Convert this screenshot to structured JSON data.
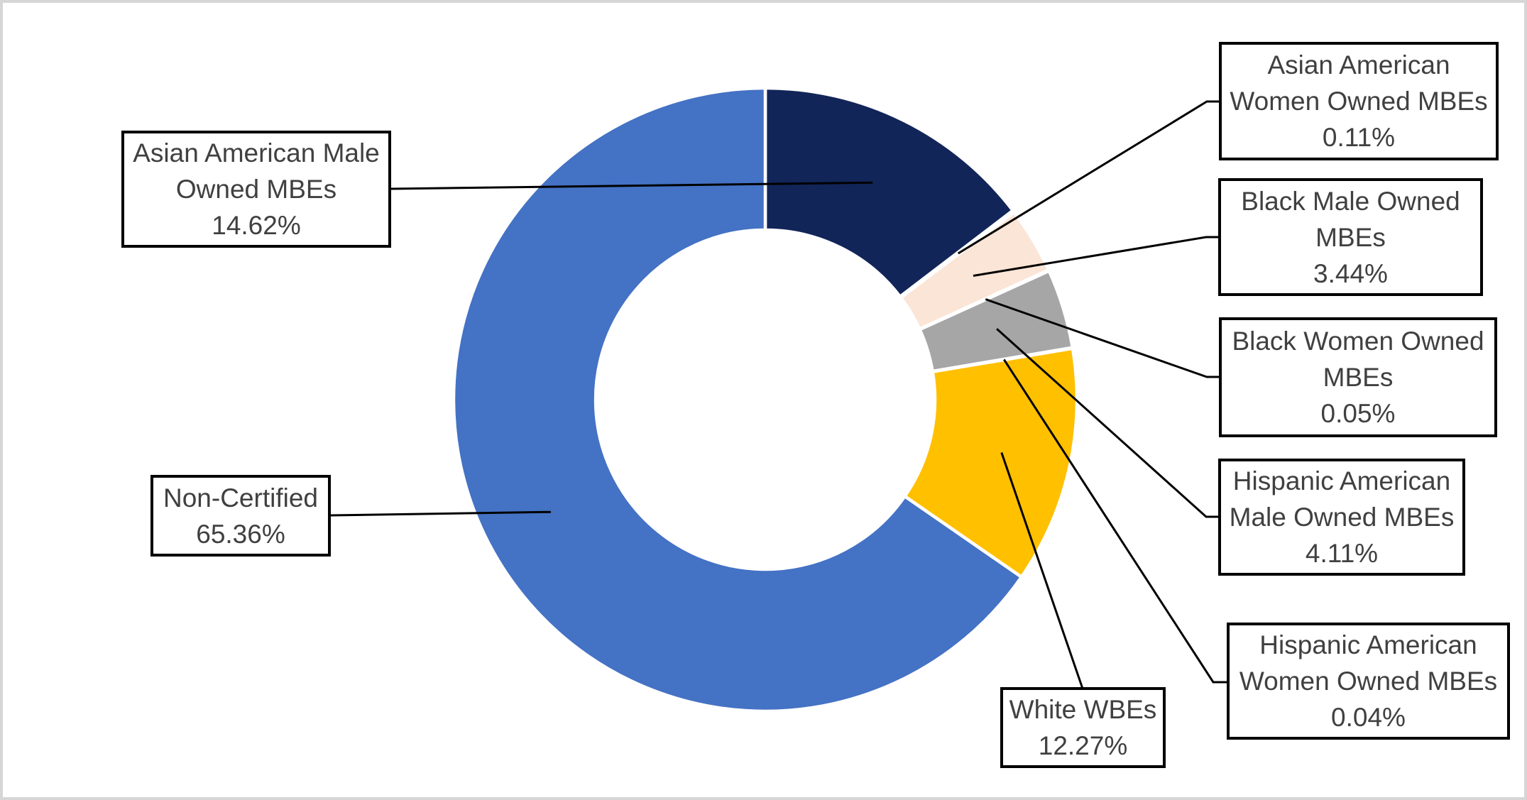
{
  "chart_data": {
    "type": "pie",
    "subtype": "donut",
    "title": "",
    "legend": "none",
    "direction": "clockwise",
    "start_angle_deg": 0,
    "hole_ratio": 0.54,
    "segments": [
      {
        "name": "asian-american-male-owned-mbes",
        "label_lines": [
          "Asian American Male",
          "Owned MBEs"
        ],
        "value": 14.62,
        "display": "14.62%",
        "color": "#122559"
      },
      {
        "name": "asian-american-women-owned-mbes",
        "label_lines": [
          "Asian American",
          "Women Owned MBEs"
        ],
        "value": 0.11,
        "display": "0.11%",
        "color": "#FFFFFF"
      },
      {
        "name": "black-male-owned-mbes",
        "label_lines": [
          "Black Male Owned",
          "MBEs"
        ],
        "value": 3.44,
        "display": "3.44%",
        "color": "#FBE5D6"
      },
      {
        "name": "black-women-owned-mbes",
        "label_lines": [
          "Black Women Owned",
          "MBEs"
        ],
        "value": 0.05,
        "display": "0.05%",
        "color": "#FFFFFF"
      },
      {
        "name": "hispanic-american-male-owned-mbes",
        "label_lines": [
          "Hispanic American",
          "Male Owned MBEs"
        ],
        "value": 4.11,
        "display": "4.11%",
        "color": "#A6A6A6"
      },
      {
        "name": "hispanic-american-women-owned-mbes",
        "label_lines": [
          "Hispanic American",
          "Women Owned MBEs"
        ],
        "value": 0.04,
        "display": "0.04%",
        "color": "#FFFFFF"
      },
      {
        "name": "white-wbes",
        "label_lines": [
          "White WBEs"
        ],
        "value": 12.27,
        "display": "12.27%",
        "color": "#FFC000"
      },
      {
        "name": "non-certified",
        "label_lines": [
          "Non-Certified"
        ],
        "value": 65.36,
        "display": "65.36%",
        "color": "#4472C4"
      }
    ],
    "colors": {
      "leader_line": "#000000",
      "label_border": "#000000",
      "label_text": "#404040",
      "slice_gap": "#FFFFFF",
      "frame": "#D6D6D6"
    }
  }
}
